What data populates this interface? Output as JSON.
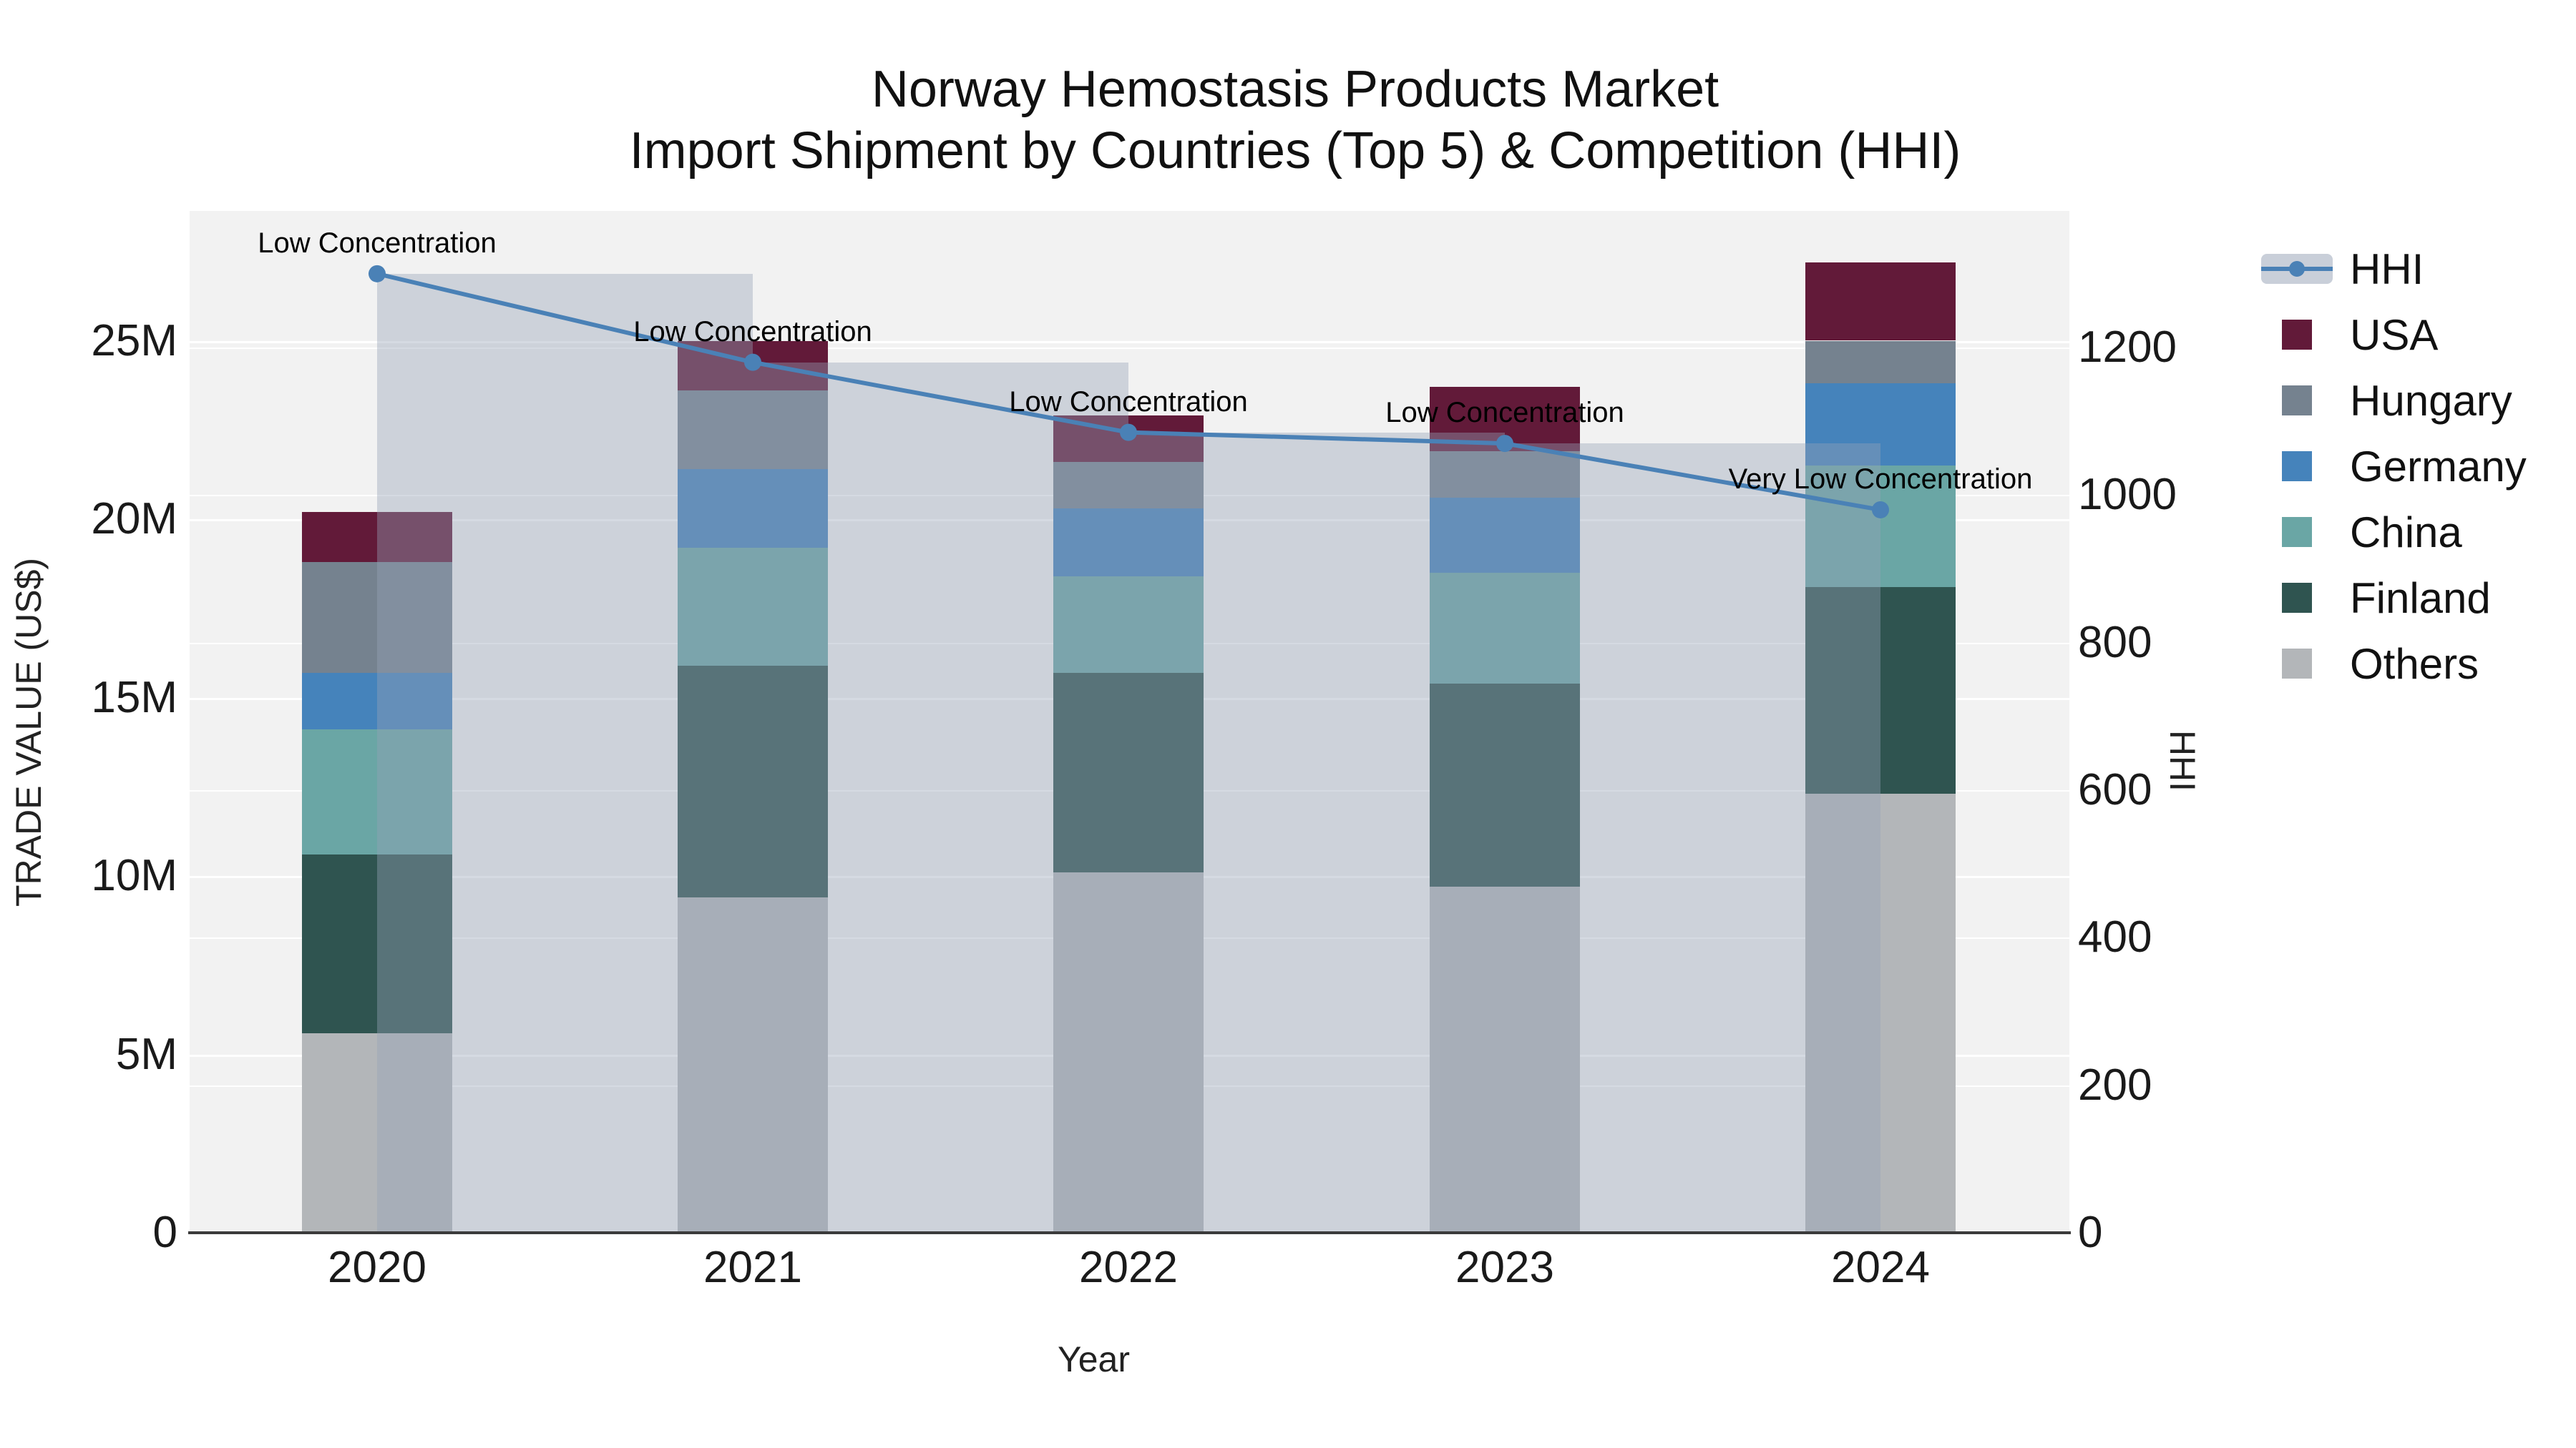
{
  "chart_data": {
    "type": "bar+line",
    "title": "Norway Hemostasis Products Market",
    "subtitle": "Import Shipment by Countries (Top 5) & Competition (HHI)",
    "xlabel": "Year",
    "ylabel_left": "TRADE VALUE (US$)",
    "ylabel_right": "HHI",
    "categories": [
      "2020",
      "2021",
      "2022",
      "2023",
      "2024"
    ],
    "unit": "M US$",
    "series": [
      {
        "name": "USA",
        "color": "#621a39",
        "values": [
          1.4,
          1.4,
          1.3,
          1.8,
          2.2
        ]
      },
      {
        "name": "Hungary",
        "color": "#75828f",
        "values": [
          3.1,
          2.2,
          1.3,
          1.3,
          1.2
        ]
      },
      {
        "name": "Germany",
        "color": "#4583bb",
        "values": [
          1.6,
          2.2,
          1.9,
          2.1,
          2.3
        ]
      },
      {
        "name": "China",
        "color": "#6aa6a5",
        "values": [
          3.5,
          3.3,
          2.7,
          3.1,
          3.4
        ]
      },
      {
        "name": "Finland",
        "color": "#2f5450",
        "values": [
          5.0,
          6.5,
          5.6,
          5.7,
          5.8
        ]
      },
      {
        "name": "Others",
        "color": "#b3b6b9",
        "values": [
          5.6,
          9.4,
          10.1,
          9.7,
          12.3
        ]
      }
    ],
    "stack_totals": [
      20.2,
      25.0,
      22.9,
      23.7,
      27.2
    ],
    "hhi": {
      "name": "HHI",
      "color": "#4a81b6",
      "values": [
        1300,
        1180,
        1085,
        1070,
        980
      ]
    },
    "annotations": [
      "Low Concentration",
      "Low Concentration",
      "Low Concentration",
      "Low Concentration",
      "Very Low Concentration"
    ],
    "y_left": {
      "values": [
        0,
        5,
        10,
        15,
        20,
        25
      ],
      "labels": [
        "0",
        "5M",
        "10M",
        "15M",
        "20M",
        "25M"
      ],
      "range_m": [
        0,
        25
      ]
    },
    "y_right": {
      "values": [
        0,
        200,
        400,
        600,
        800,
        1000,
        1200
      ],
      "labels": [
        "0",
        "200",
        "400",
        "600",
        "800",
        "1000",
        "1200"
      ],
      "range": [
        0,
        1200
      ]
    },
    "legend_position": "right",
    "grid": true
  },
  "colors": {
    "plot_bg": "#f2f2f2",
    "grid": "#ffffff",
    "axis_line": "#3b3b3b",
    "hhi_line": "#4a81b6",
    "band": "rgba(150,162,182,0.40)",
    "text": "#111111"
  }
}
